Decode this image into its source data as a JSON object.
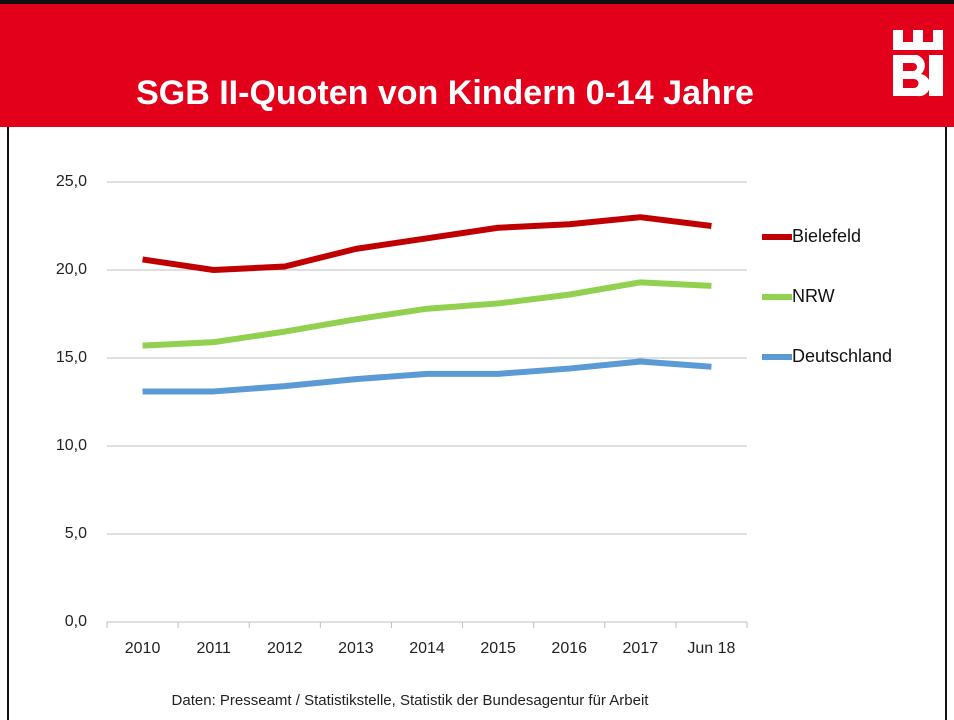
{
  "chart_data": {
    "type": "line",
    "title": "SGB II-Quoten von Kindern 0-14 Jahre",
    "caption": "Daten: Presseamt / Statistikstelle, Statistik der Bundesagentur für Arbeit",
    "categories": [
      "2010",
      "2011",
      "2012",
      "2013",
      "2014",
      "2015",
      "2016",
      "2017",
      "Jun 18"
    ],
    "series": [
      {
        "name": "Bielefeld",
        "color": "#c00000",
        "values": [
          20.6,
          20.0,
          20.2,
          21.2,
          21.8,
          22.4,
          22.6,
          23.0,
          22.5
        ]
      },
      {
        "name": "NRW",
        "color": "#92d050",
        "values": [
          15.7,
          15.9,
          16.5,
          17.2,
          17.8,
          18.1,
          18.6,
          19.3,
          19.1
        ]
      },
      {
        "name": "Deutschland",
        "color": "#5b9bd5",
        "values": [
          13.1,
          13.1,
          13.4,
          13.8,
          14.1,
          14.1,
          14.4,
          14.8,
          14.5
        ]
      }
    ],
    "ylim": [
      0,
      25
    ],
    "yticks": [
      {
        "value": 0,
        "label": "0,0"
      },
      {
        "value": 5,
        "label": "5,0"
      },
      {
        "value": 10,
        "label": "10,0"
      },
      {
        "value": 15,
        "label": "15,0"
      },
      {
        "value": 20,
        "label": "20,0"
      },
      {
        "value": 25,
        "label": "25,0"
      }
    ],
    "grid": true,
    "legend": "right"
  }
}
